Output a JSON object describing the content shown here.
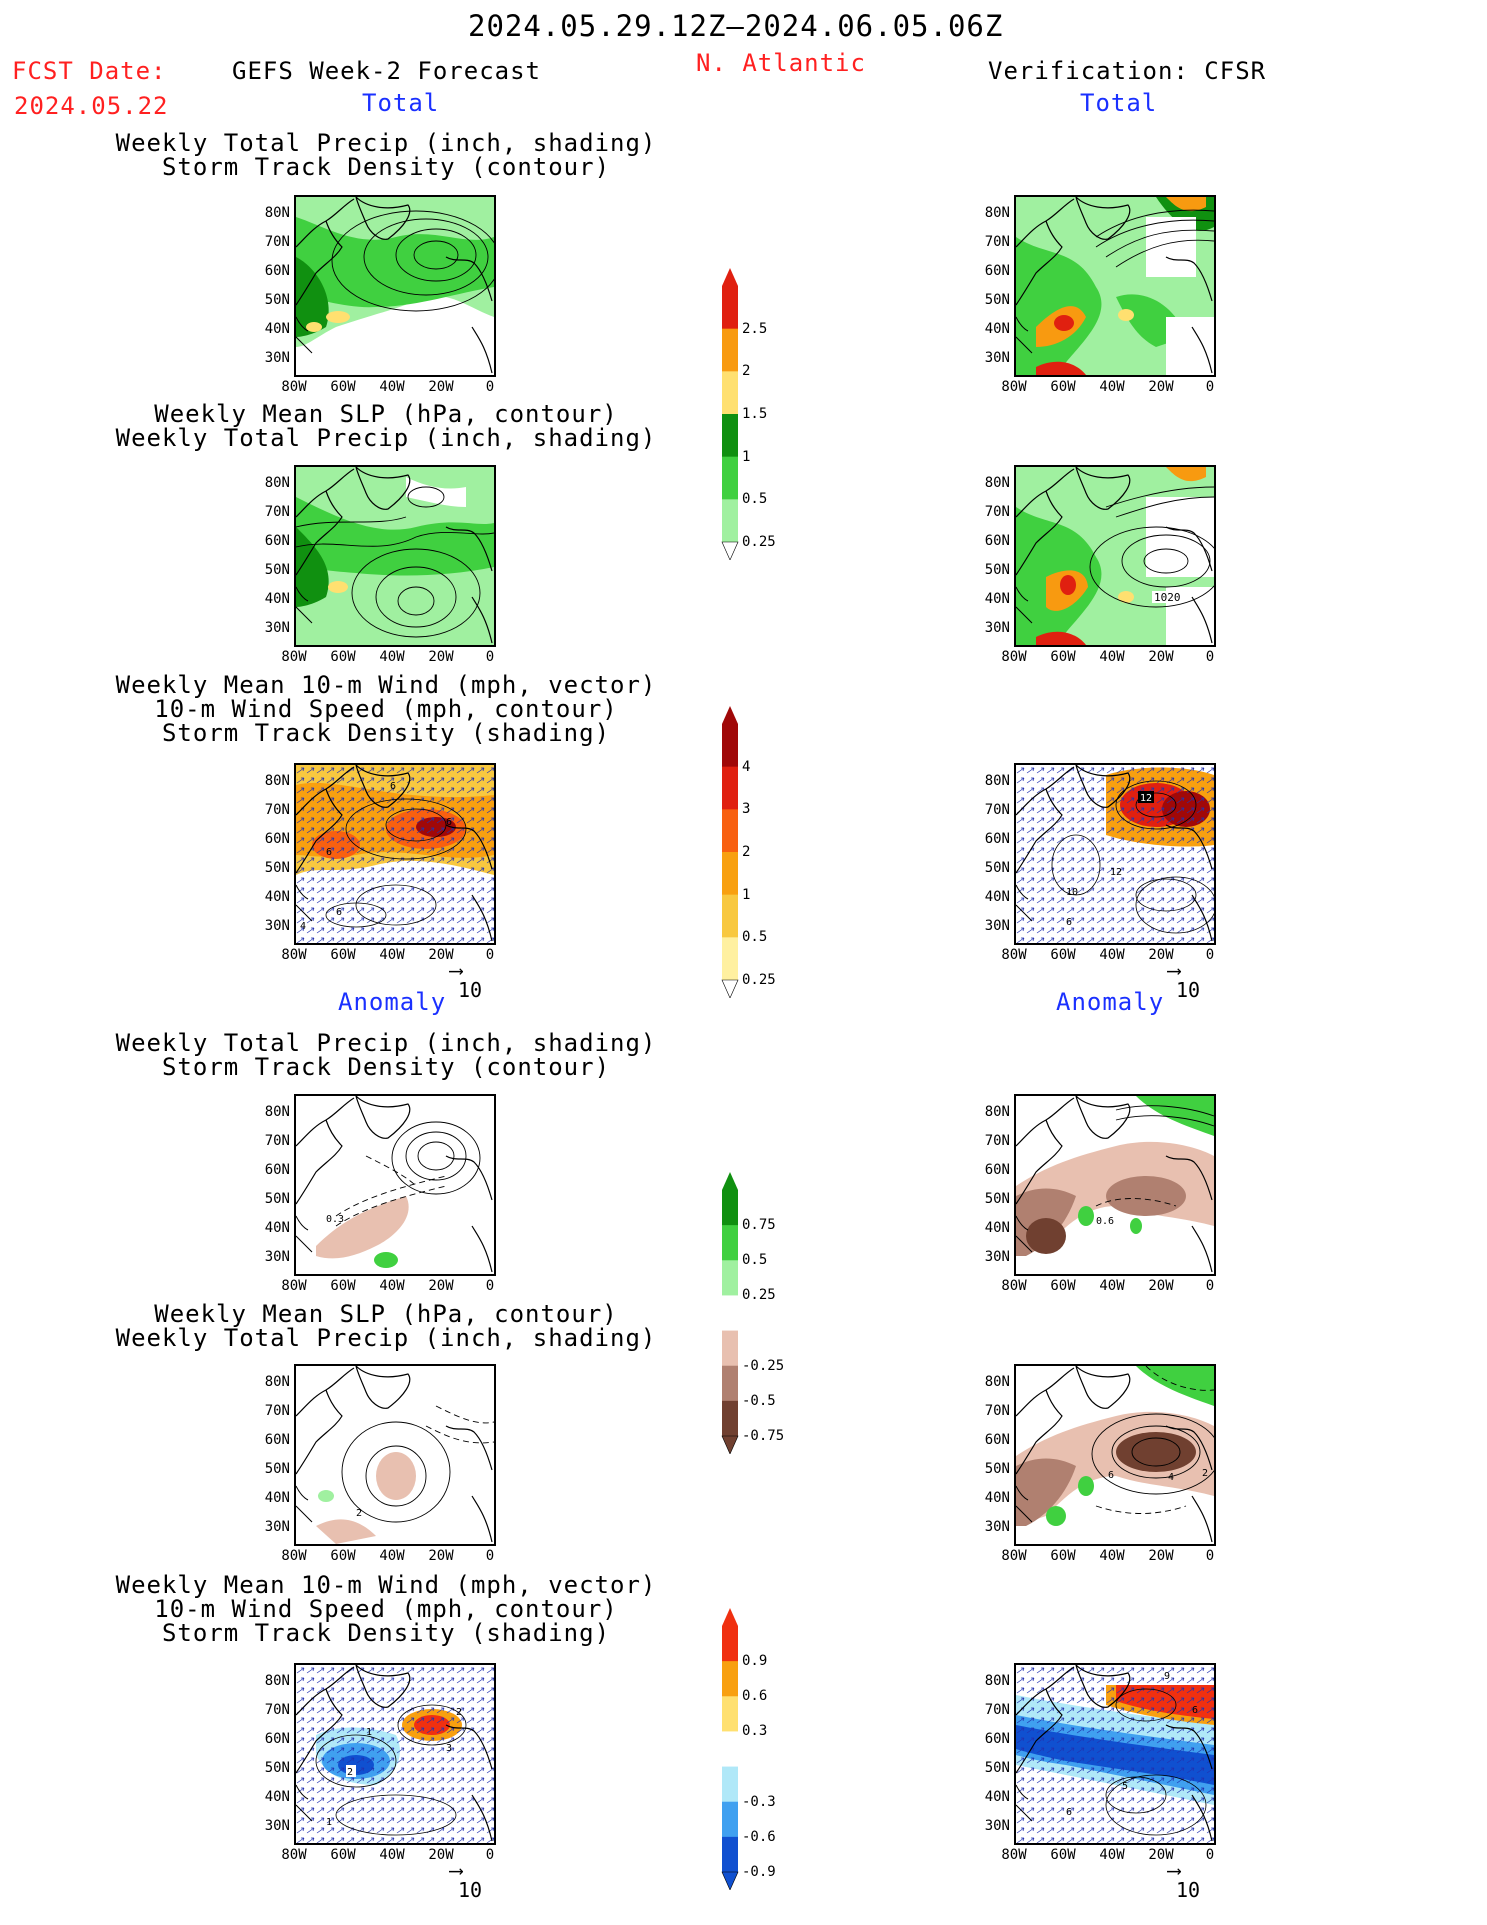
{
  "header": {
    "date_range": "2024.05.29.12Z–2024.06.05.06Z",
    "fcst_label": "FCST Date:",
    "fcst_date": "2024.05.22",
    "left_title": "GEFS Week-2 Forecast",
    "region": "N. Atlantic",
    "right_title": "Verification: CFSR",
    "total_label": "Total",
    "anomaly_label": "Anomaly"
  },
  "panel_titles": {
    "precip_track": [
      "Weekly Total Precip (inch, shading)",
      "Storm Track Density (contour)"
    ],
    "slp_precip": [
      "Weekly Mean SLP (hPa, contour)",
      "Weekly Total Precip (inch, shading)"
    ],
    "wind": [
      "Weekly Mean 10-m Wind (mph, vector)",
      "10-m Wind Speed (mph, contour)",
      "Storm Track Density (shading)"
    ]
  },
  "axes": {
    "lat_ticks": [
      "80N",
      "70N",
      "60N",
      "50N",
      "40N",
      "30N"
    ],
    "lon_ticks": [
      "80W",
      "60W",
      "40W",
      "20W",
      "0"
    ]
  },
  "vector_ref": "10",
  "colorbars": {
    "precip_total": {
      "labels": [
        "2.5",
        "2",
        "1.5",
        "1",
        "0.5",
        "0.25"
      ],
      "colors": [
        "#e02010",
        "#f89a10",
        "#ffe070",
        "#109010",
        "#40d040",
        "#a0f0a0"
      ]
    },
    "track_total": {
      "labels": [
        "4",
        "3",
        "2",
        "1",
        "0.5",
        "0.25"
      ],
      "colors": [
        "#a00808",
        "#e02010",
        "#f86010",
        "#f8a010",
        "#f8c840",
        "#fff0a0"
      ]
    },
    "precip_anom": {
      "labels": [
        "0.75",
        "0.5",
        "0.25",
        "-0.25",
        "-0.5",
        "-0.75"
      ],
      "colors": [
        "#109010",
        "#40d040",
        "#a0f0a0",
        "#ffffff",
        "#e8c0b0",
        "#b08070",
        "#704030"
      ]
    },
    "track_anom": {
      "labels": [
        "0.9",
        "0.6",
        "0.3",
        "-0.3",
        "-0.6",
        "-0.9"
      ],
      "colors": [
        "#f03010",
        "#f8a010",
        "#ffe070",
        "#ffffff",
        "#b0e8f8",
        "#40a0f0",
        "#1050d0"
      ]
    }
  },
  "contour_labels": {
    "r2_right": "1020",
    "r3_left": [
      "6",
      "6",
      "6",
      "4",
      "6"
    ],
    "r3_right": [
      "12",
      "12",
      "10",
      "6"
    ],
    "r4_left": "0.3",
    "r4_right": "0.6",
    "r5_left": "2",
    "r5_right": [
      "6",
      "4",
      "2"
    ],
    "r6_left": [
      "2",
      "1",
      "2",
      "3",
      "1"
    ],
    "r6_right": [
      "9",
      "6",
      "5",
      "6"
    ]
  }
}
